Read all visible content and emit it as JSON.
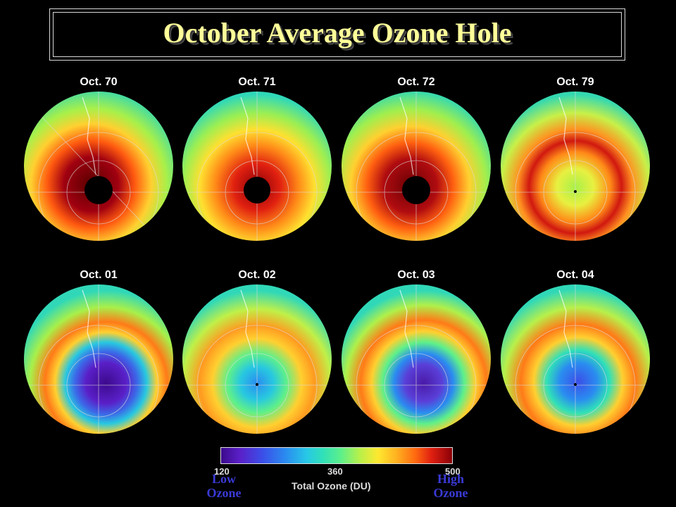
{
  "title": "October Average Ozone Hole",
  "panels": [
    {
      "label": "Oct. 70"
    },
    {
      "label": "Oct. 71"
    },
    {
      "label": "Oct. 72"
    },
    {
      "label": "Oct. 79"
    },
    {
      "label": "Oct. 01"
    },
    {
      "label": "Oct. 02"
    },
    {
      "label": "Oct. 03"
    },
    {
      "label": "Oct. 04"
    }
  ],
  "colorbar": {
    "tick_min": "120",
    "tick_mid": "360",
    "tick_max": "500",
    "title": "Total Ozone (DU)",
    "low_label_1": "Low",
    "low_label_2": "Ozone",
    "high_label_1": "High",
    "high_label_2": "Ozone"
  }
}
